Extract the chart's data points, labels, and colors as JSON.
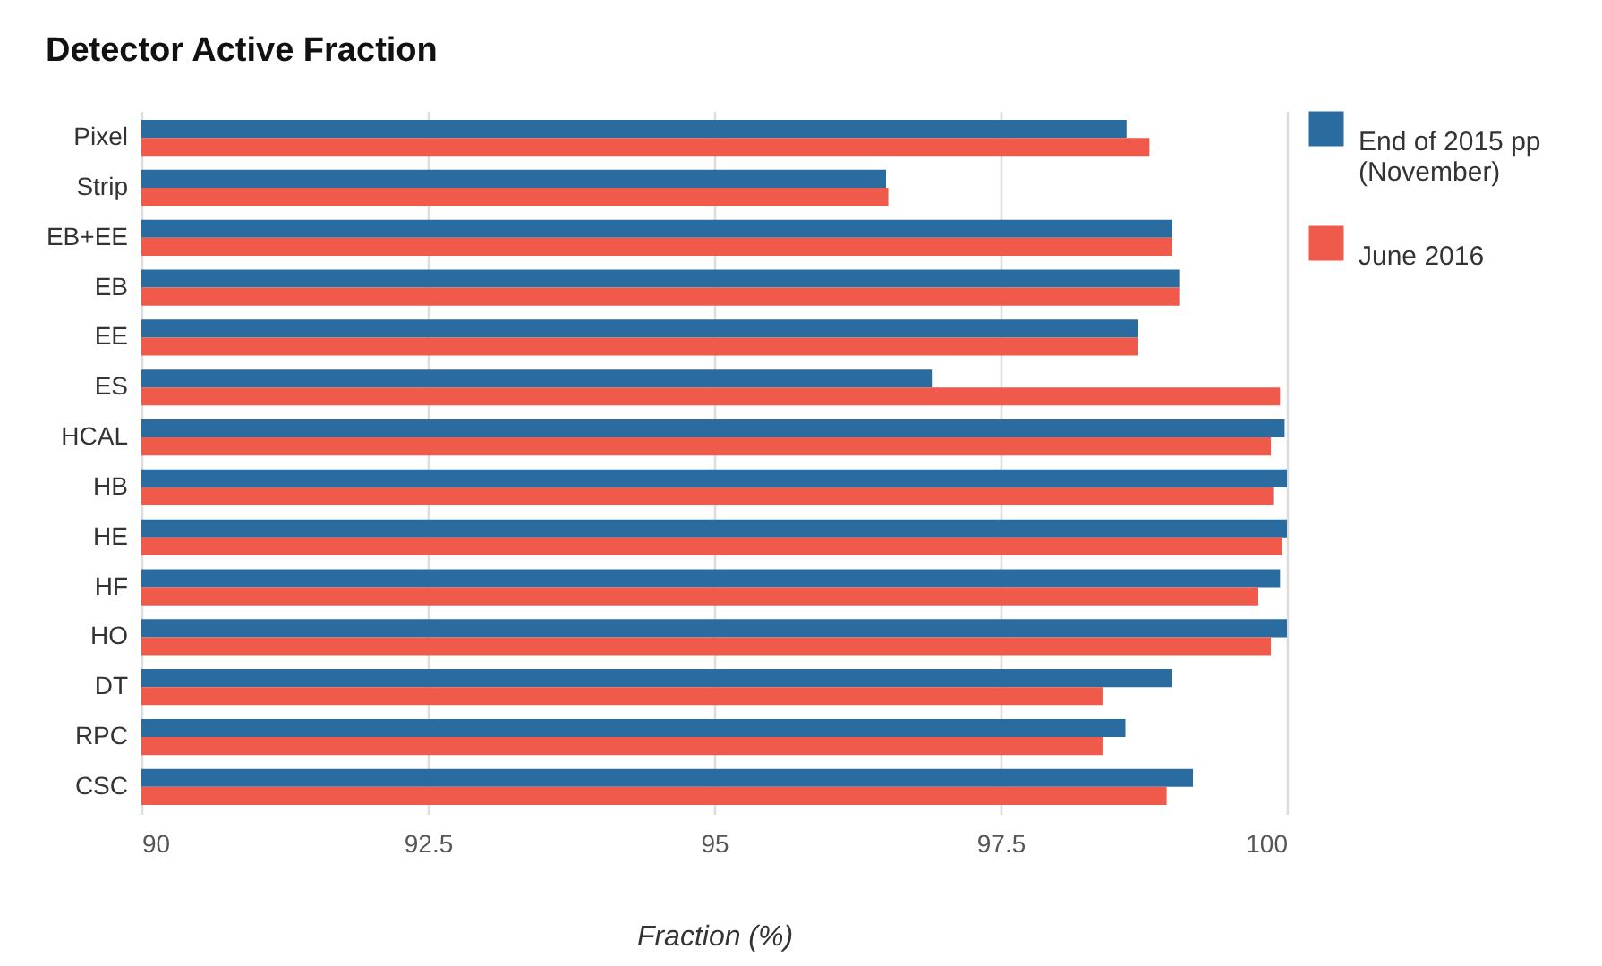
{
  "chart_data": {
    "type": "bar",
    "orientation": "horizontal",
    "title": "Detector Active Fraction",
    "xlabel": "Fraction (%)",
    "categories": [
      "Pixel",
      "Strip",
      "EB+EE",
      "EB",
      "EE",
      "ES",
      "HCAL",
      "HB",
      "HE",
      "HF",
      "HO",
      "DT",
      "RPC",
      "CSC"
    ],
    "series": [
      {
        "name": "End of 2015 pp (November)",
        "color": "#2a6c9f",
        "values": [
          98.6,
          96.5,
          99.0,
          99.06,
          98.7,
          96.9,
          99.98,
          100.0,
          100.0,
          99.94,
          100.0,
          99.0,
          98.59,
          99.18
        ]
      },
      {
        "name": "June 2016",
        "color": "#ef5a4b",
        "values": [
          98.8,
          96.52,
          99.0,
          99.06,
          98.7,
          99.94,
          99.86,
          99.88,
          99.96,
          99.75,
          99.86,
          98.39,
          98.39,
          98.95
        ]
      }
    ],
    "xlim": [
      90,
      100
    ],
    "xticks": [
      90,
      92.5,
      95,
      97.5,
      100
    ],
    "grid": "x",
    "legend": "top right"
  }
}
